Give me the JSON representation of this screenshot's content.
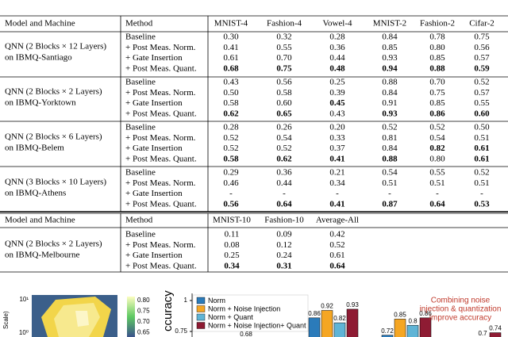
{
  "table1": {
    "header": [
      "Model and Machine",
      "Method",
      "MNIST-4",
      "Fashion-4",
      "Vowel-4",
      "MNIST-2",
      "Fashion-2",
      "Cifar-2"
    ],
    "groups": [
      {
        "model": [
          "QNN (2 Blocks × 12 Layers)",
          "on IBMQ-Santiago"
        ],
        "rows": [
          {
            "method": "Baseline",
            "values": [
              "0.30",
              "0.32",
              "0.28",
              "0.84",
              "0.78",
              "0.75"
            ],
            "bold": []
          },
          {
            "method": "+ Post Meas. Norm.",
            "values": [
              "0.41",
              "0.55",
              "0.36",
              "0.85",
              "0.80",
              "0.56"
            ],
            "bold": []
          },
          {
            "method": "+ Gate Insertion",
            "values": [
              "0.61",
              "0.70",
              "0.44",
              "0.93",
              "0.85",
              "0.57"
            ],
            "bold": []
          },
          {
            "method": "+ Post Meas. Quant.",
            "values": [
              "0.68",
              "0.75",
              "0.48",
              "0.94",
              "0.88",
              "0.59"
            ],
            "bold": [
              0,
              1,
              2,
              3,
              4,
              5
            ]
          }
        ]
      },
      {
        "model": [
          "QNN (2 Blocks × 2 Layers)",
          "on IBMQ-Yorktown"
        ],
        "rows": [
          {
            "method": "Baseline",
            "values": [
              "0.43",
              "0.56",
              "0.25",
              "0.88",
              "0.70",
              "0.52"
            ],
            "bold": []
          },
          {
            "method": "+ Post Meas. Norm.",
            "values": [
              "0.50",
              "0.58",
              "0.39",
              "0.84",
              "0.75",
              "0.57"
            ],
            "bold": []
          },
          {
            "method": "+ Gate Insertion",
            "values": [
              "0.58",
              "0.60",
              "0.45",
              "0.91",
              "0.85",
              "0.55"
            ],
            "bold": [
              2
            ]
          },
          {
            "method": "+ Post Meas. Quant.",
            "values": [
              "0.62",
              "0.65",
              "0.43",
              "0.93",
              "0.86",
              "0.60"
            ],
            "bold": [
              0,
              1,
              3,
              4,
              5
            ]
          }
        ]
      },
      {
        "model": [
          "QNN (2 Blocks × 6 Layers)",
          "on IBMQ-Belem"
        ],
        "rows": [
          {
            "method": "Baseline",
            "values": [
              "0.28",
              "0.26",
              "0.20",
              "0.52",
              "0.52",
              "0.50"
            ],
            "bold": []
          },
          {
            "method": "+ Post Meas. Norm.",
            "values": [
              "0.52",
              "0.54",
              "0.33",
              "0.81",
              "0.54",
              "0.51"
            ],
            "bold": []
          },
          {
            "method": "+ Gate Insertion",
            "values": [
              "0.52",
              "0.52",
              "0.37",
              "0.84",
              "0.82",
              "0.61"
            ],
            "bold": [
              4,
              5
            ]
          },
          {
            "method": "+ Post Meas. Quant.",
            "values": [
              "0.58",
              "0.62",
              "0.41",
              "0.88",
              "0.80",
              "0.61"
            ],
            "bold": [
              0,
              1,
              2,
              3,
              5
            ]
          }
        ]
      },
      {
        "model": [
          "QNN (3 Blocks × 10 Layers)",
          "on IBMQ-Athens"
        ],
        "rows": [
          {
            "method": "Baseline",
            "values": [
              "0.29",
              "0.36",
              "0.21",
              "0.54",
              "0.55",
              "0.52"
            ],
            "bold": []
          },
          {
            "method": "+ Post Meas. Norm.",
            "values": [
              "0.46",
              "0.44",
              "0.34",
              "0.51",
              "0.51",
              "0.51"
            ],
            "bold": []
          },
          {
            "method": "+ Gate Insertion",
            "values": [
              "-",
              "-",
              "-",
              "-",
              "-",
              "-"
            ],
            "bold": []
          },
          {
            "method": "+ Post Meas. Quant.",
            "values": [
              "0.56",
              "0.64",
              "0.41",
              "0.87",
              "0.64",
              "0.53"
            ],
            "bold": [
              0,
              1,
              2,
              3,
              4,
              5
            ]
          }
        ]
      }
    ]
  },
  "table2": {
    "header": [
      "Model and Machine",
      "Method",
      "MNIST-10",
      "Fashion-10",
      "Average-All"
    ],
    "groups": [
      {
        "model": [
          "QNN (2 Blocks × 2 Layers)",
          "on IBMQ-Melbourne"
        ],
        "rows": [
          {
            "method": "Baseline",
            "values": [
              "0.11",
              "0.09",
              "0.42"
            ],
            "bold": []
          },
          {
            "method": "+ Post Meas. Norm.",
            "values": [
              "0.08",
              "0.12",
              "0.52"
            ],
            "bold": []
          },
          {
            "method": "+ Gate Insertion",
            "values": [
              "0.25",
              "0.24",
              "0.61"
            ],
            "bold": []
          },
          {
            "method": "+ Post Meas. Quant.",
            "values": [
              "0.34",
              "0.31",
              "0.64"
            ],
            "bold": [
              0,
              1,
              2
            ]
          }
        ]
      }
    ]
  },
  "heatmap": {
    "yticks": [
      "10¹",
      "10⁰"
    ],
    "y_label": "Scale)",
    "colorbar_ticks": [
      "0.80",
      "0.75",
      "0.70",
      "0.65"
    ]
  },
  "chart_data": {
    "type": "bar",
    "y_label": "ccuracy",
    "categories": [
      null,
      null,
      null
    ],
    "series": [
      {
        "name": "Norm",
        "color": "#2b7bba",
        "values": [
          0.86,
          0.72,
          null
        ]
      },
      {
        "name": "Norm + Noise Injection",
        "color": "#f5a623",
        "values": [
          0.92,
          0.85,
          null
        ]
      },
      {
        "name": "Norm + Quant",
        "color": "#5fb4d6",
        "values": [
          0.82,
          0.8,
          0.7
        ]
      },
      {
        "name": "Norm + Noise Injection+ Quant",
        "color": "#8e1b33",
        "values": [
          0.93,
          0.86,
          0.74
        ]
      }
    ],
    "ylim": [
      0.7,
      1.0
    ],
    "yticks": [
      0.75,
      {
        "value": 1,
        "label": "1"
      }
    ],
    "extra_label": "0.68",
    "annotation": [
      "Combining noise",
      "injection & quantization",
      "improve accuracy"
    ]
  }
}
